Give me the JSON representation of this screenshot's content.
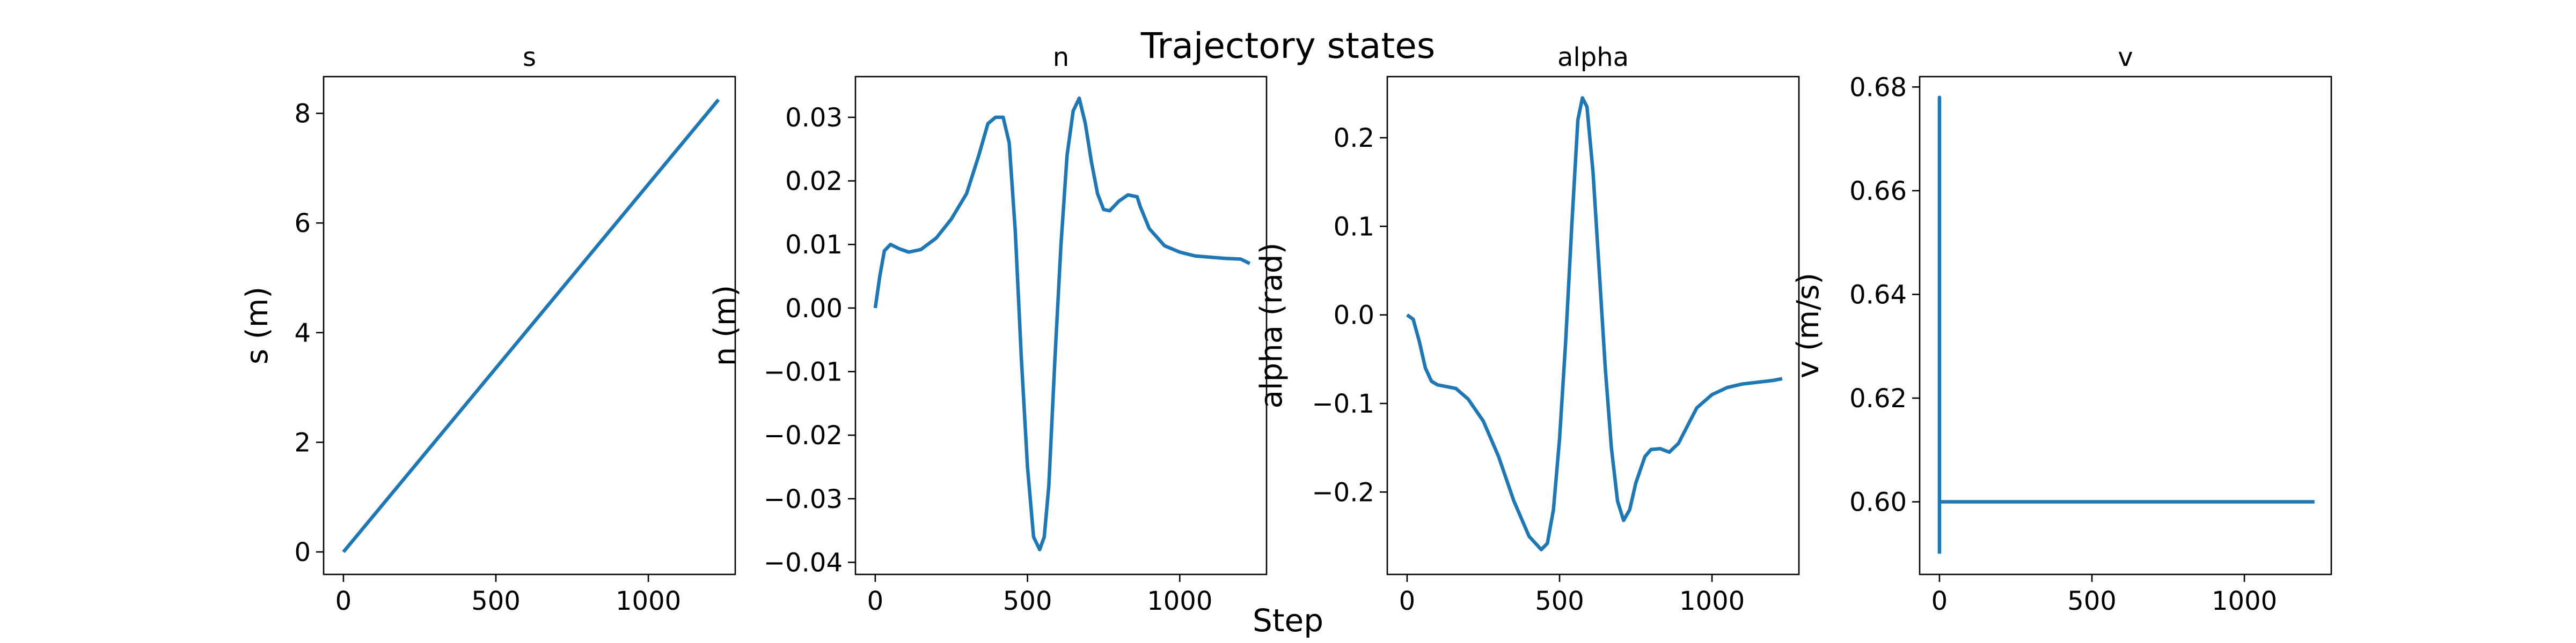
{
  "figure": {
    "title": "Trajectory states",
    "xlabel": "Step"
  },
  "chart_data": [
    {
      "type": "line",
      "title": "s",
      "xlabel": "",
      "ylabel": "s (m)",
      "xlim": [
        -65,
        1285
      ],
      "ylim": [
        -0.41,
        8.67
      ],
      "xticks": [
        0,
        500,
        1000
      ],
      "yticks": [
        0,
        2,
        4,
        6,
        8
      ],
      "color": "#1f77b4",
      "x": [
        0,
        1230
      ],
      "y": [
        0,
        8.25
      ]
    },
    {
      "type": "line",
      "title": "n",
      "xlabel": "",
      "ylabel": "n (m)",
      "xlim": [
        -65,
        1285
      ],
      "ylim": [
        -0.0419,
        0.0364
      ],
      "xticks": [
        0,
        500,
        1000
      ],
      "yticks": [
        -0.04,
        -0.03,
        -0.02,
        -0.01,
        0.0,
        0.01,
        0.02,
        0.03
      ],
      "ytick_labels": [
        "−0.04",
        "−0.03",
        "−0.02",
        "−0.01",
        "0.00",
        "0.01",
        "0.02",
        "0.03"
      ],
      "color": "#1f77b4",
      "x": [
        0,
        15,
        30,
        50,
        80,
        110,
        150,
        200,
        250,
        300,
        340,
        370,
        395,
        420,
        440,
        460,
        480,
        500,
        520,
        540,
        555,
        570,
        590,
        610,
        630,
        650,
        670,
        690,
        710,
        730,
        750,
        770,
        800,
        830,
        860,
        870,
        900,
        950,
        1000,
        1050,
        1100,
        1150,
        1200,
        1230
      ],
      "y": [
        0.0,
        0.005,
        0.009,
        0.01,
        0.0093,
        0.0088,
        0.0092,
        0.011,
        0.014,
        0.018,
        0.024,
        0.029,
        0.03,
        0.03,
        0.026,
        0.012,
        -0.008,
        -0.025,
        -0.036,
        -0.038,
        -0.036,
        -0.028,
        -0.008,
        0.01,
        0.024,
        0.031,
        0.033,
        0.029,
        0.023,
        0.018,
        0.0155,
        0.0153,
        0.0168,
        0.0178,
        0.0175,
        0.016,
        0.0125,
        0.0098,
        0.0088,
        0.0082,
        0.008,
        0.0078,
        0.0077,
        0.007
      ]
    },
    {
      "type": "line",
      "title": "alpha",
      "xlabel": "",
      "ylabel": "alpha (rad)",
      "xlim": [
        -65,
        1285
      ],
      "ylim": [
        -0.293,
        0.269
      ],
      "xticks": [
        0,
        500,
        1000
      ],
      "yticks": [
        -0.2,
        -0.1,
        0.0,
        0.1,
        0.2
      ],
      "ytick_labels": [
        "−0.2",
        "−0.1",
        "0.0",
        "0.1",
        "0.2"
      ],
      "color": "#1f77b4",
      "x": [
        0,
        20,
        40,
        60,
        80,
        100,
        130,
        160,
        200,
        250,
        300,
        350,
        400,
        440,
        460,
        480,
        500,
        520,
        540,
        560,
        575,
        590,
        610,
        630,
        650,
        670,
        690,
        710,
        730,
        750,
        780,
        800,
        830,
        860,
        890,
        920,
        950,
        1000,
        1050,
        1100,
        1150,
        1200,
        1230
      ],
      "y": [
        0.0,
        -0.005,
        -0.03,
        -0.06,
        -0.075,
        -0.079,
        -0.081,
        -0.083,
        -0.095,
        -0.12,
        -0.16,
        -0.21,
        -0.25,
        -0.265,
        -0.258,
        -0.22,
        -0.14,
        -0.03,
        0.1,
        0.22,
        0.245,
        0.235,
        0.16,
        0.05,
        -0.06,
        -0.15,
        -0.21,
        -0.232,
        -0.22,
        -0.19,
        -0.16,
        -0.152,
        -0.151,
        -0.155,
        -0.145,
        -0.125,
        -0.105,
        -0.09,
        -0.082,
        -0.078,
        -0.076,
        -0.074,
        -0.072
      ]
    },
    {
      "type": "line",
      "title": "v",
      "xlabel": "",
      "ylabel": "v (m/s)",
      "xlim": [
        -65,
        1285
      ],
      "ylim": [
        0.586,
        0.682
      ],
      "xticks": [
        0,
        500,
        1000
      ],
      "yticks": [
        0.6,
        0.62,
        0.64,
        0.66,
        0.68
      ],
      "ytick_labels": [
        "0.60",
        "0.62",
        "0.64",
        "0.66",
        "0.68"
      ],
      "color": "#1f77b4",
      "x": [
        0,
        0,
        0,
        2,
        1230
      ],
      "y": [
        0.59,
        0.678,
        0.6,
        0.6,
        0.6
      ]
    }
  ]
}
